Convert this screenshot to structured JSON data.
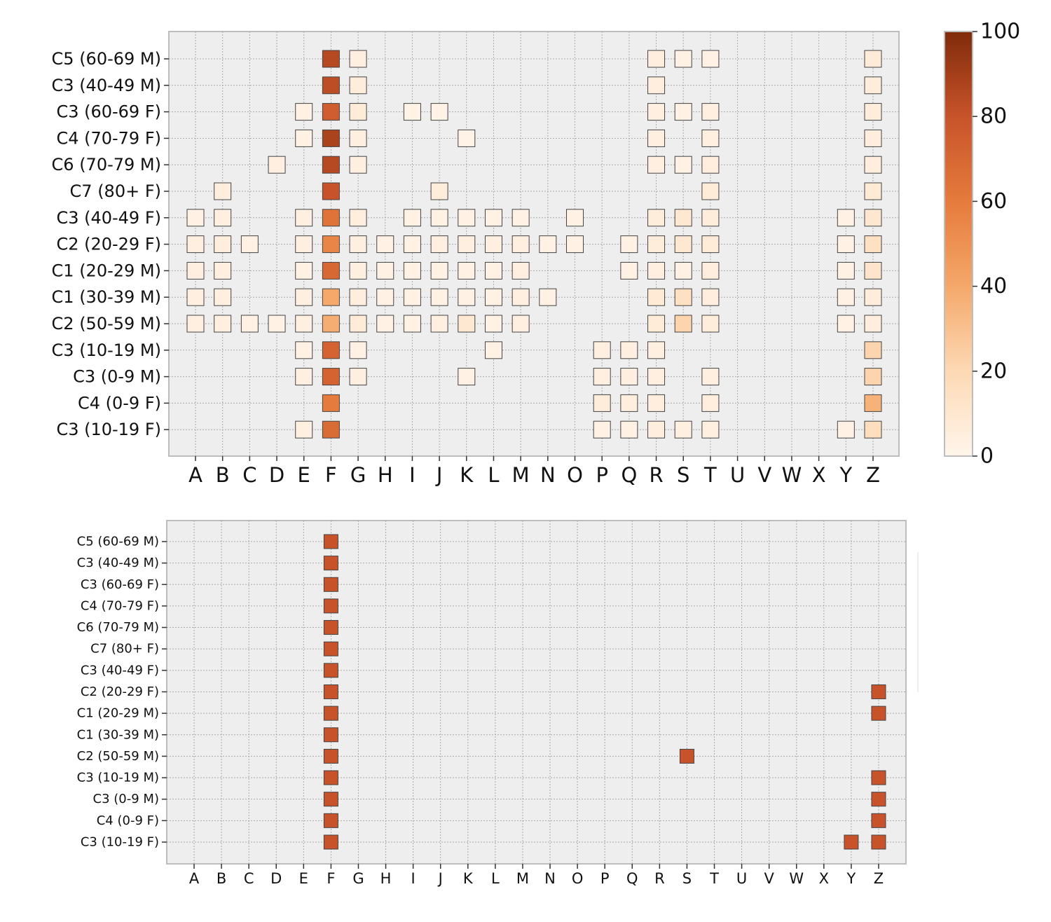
{
  "chart_data": [
    {
      "type": "heatmap",
      "title": "",
      "xlabel": "",
      "ylabel": "",
      "rows": [
        "C5 (60-69 M)",
        "C3 (40-49 M)",
        "C3 (60-69 F)",
        "C4 (70-79 F)",
        "C6 (70-79 M)",
        "C7 (80+ F)",
        "C3 (40-49 F)",
        "C2 (20-29 F)",
        "C1 (20-29 M)",
        "C1 (30-39 M)",
        "C2 (50-59 M)",
        "C3 (10-19 M)",
        "C3 (0-9 M)",
        "C4 (0-9 F)",
        "C3 (10-19 F)"
      ],
      "columns": [
        "A",
        "B",
        "C",
        "D",
        "E",
        "F",
        "G",
        "H",
        "I",
        "J",
        "K",
        "L",
        "M",
        "N",
        "O",
        "P",
        "Q",
        "R",
        "S",
        "T",
        "U",
        "V",
        "W",
        "X",
        "Y",
        "Z"
      ],
      "values": [
        [
          null,
          null,
          null,
          null,
          null,
          85,
          4,
          null,
          null,
          null,
          null,
          null,
          null,
          null,
          null,
          null,
          null,
          5,
          3,
          3,
          null,
          null,
          null,
          null,
          null,
          7
        ],
        [
          null,
          null,
          null,
          null,
          null,
          83,
          6,
          null,
          null,
          null,
          null,
          null,
          null,
          null,
          null,
          null,
          null,
          5,
          null,
          null,
          null,
          null,
          null,
          null,
          null,
          6
        ],
        [
          null,
          null,
          null,
          null,
          3,
          75,
          7,
          null,
          2,
          2,
          null,
          null,
          null,
          null,
          null,
          null,
          null,
          4,
          3,
          4,
          null,
          null,
          null,
          null,
          null,
          6
        ],
        [
          null,
          null,
          null,
          null,
          3,
          88,
          4,
          null,
          null,
          null,
          2,
          null,
          null,
          null,
          null,
          null,
          null,
          4,
          null,
          4,
          null,
          null,
          null,
          null,
          null,
          5
        ],
        [
          null,
          null,
          null,
          4,
          null,
          85,
          4,
          null,
          null,
          null,
          null,
          null,
          null,
          null,
          null,
          null,
          null,
          4,
          3,
          5,
          null,
          null,
          null,
          null,
          null,
          5
        ],
        [
          null,
          5,
          null,
          null,
          null,
          80,
          null,
          null,
          null,
          6,
          null,
          null,
          null,
          null,
          null,
          null,
          null,
          null,
          null,
          7,
          null,
          null,
          null,
          null,
          null,
          8
        ],
        [
          3,
          4,
          null,
          null,
          4,
          64,
          5,
          null,
          3,
          3,
          3,
          3,
          3,
          null,
          3,
          null,
          null,
          6,
          9,
          6,
          null,
          null,
          null,
          null,
          3,
          10
        ],
        [
          4,
          5,
          3,
          null,
          4,
          55,
          4,
          3,
          3,
          4,
          4,
          4,
          4,
          3,
          3,
          null,
          3,
          6,
          9,
          7,
          null,
          null,
          null,
          null,
          3,
          15
        ],
        [
          4,
          4,
          null,
          null,
          3,
          70,
          4,
          3,
          3,
          3,
          3,
          3,
          4,
          null,
          null,
          null,
          3,
          4,
          3,
          5,
          null,
          null,
          null,
          null,
          3,
          12
        ],
        [
          4,
          4,
          null,
          null,
          4,
          40,
          5,
          3,
          3,
          3,
          3,
          3,
          4,
          3,
          null,
          null,
          null,
          8,
          15,
          5,
          null,
          null,
          null,
          null,
          3,
          6
        ],
        [
          4,
          4,
          3,
          3,
          4,
          38,
          7,
          3,
          3,
          4,
          9,
          3,
          4,
          null,
          null,
          null,
          null,
          7,
          22,
          6,
          null,
          null,
          null,
          null,
          3,
          5
        ],
        [
          null,
          null,
          null,
          null,
          3,
          72,
          3,
          null,
          null,
          null,
          null,
          3,
          null,
          null,
          null,
          4,
          4,
          4,
          null,
          null,
          null,
          null,
          null,
          null,
          null,
          22
        ],
        [
          null,
          null,
          null,
          null,
          4,
          72,
          4,
          null,
          null,
          null,
          3,
          null,
          null,
          null,
          null,
          4,
          4,
          4,
          null,
          4,
          null,
          null,
          null,
          null,
          null,
          22
        ],
        [
          null,
          null,
          null,
          null,
          null,
          60,
          null,
          null,
          null,
          null,
          null,
          null,
          null,
          null,
          null,
          6,
          5,
          5,
          null,
          5,
          null,
          null,
          null,
          null,
          null,
          36
        ],
        [
          null,
          null,
          null,
          null,
          4,
          68,
          null,
          null,
          null,
          null,
          null,
          null,
          null,
          null,
          null,
          3,
          3,
          5,
          4,
          4,
          null,
          null,
          null,
          null,
          3,
          16
        ]
      ],
      "colorbar": {
        "min": 0,
        "max": 100,
        "ticks": [
          0,
          20,
          40,
          60,
          80,
          100
        ]
      }
    },
    {
      "type": "heatmap",
      "title": "",
      "xlabel": "",
      "ylabel": "",
      "rows": [
        "C5 (60-69 M)",
        "C3 (40-49 M)",
        "C3 (60-69 F)",
        "C4 (70-79 F)",
        "C6 (70-79 M)",
        "C7 (80+ F)",
        "C3 (40-49 F)",
        "C2 (20-29 F)",
        "C1 (20-29 M)",
        "C1 (30-39 M)",
        "C2 (50-59 M)",
        "C3 (10-19 M)",
        "C3 (0-9 M)",
        "C4 (0-9 F)",
        "C3 (10-19 F)"
      ],
      "columns": [
        "A",
        "B",
        "C",
        "D",
        "E",
        "F",
        "G",
        "H",
        "I",
        "J",
        "K",
        "L",
        "M",
        "N",
        "O",
        "P",
        "Q",
        "R",
        "S",
        "T",
        "U",
        "V",
        "W",
        "X",
        "Y",
        "Z"
      ],
      "markers": [
        {
          "row": "C5 (60-69 M)",
          "col": "F"
        },
        {
          "row": "C3 (40-49 M)",
          "col": "F"
        },
        {
          "row": "C3 (60-69 F)",
          "col": "F"
        },
        {
          "row": "C4 (70-79 F)",
          "col": "F"
        },
        {
          "row": "C6 (70-79 M)",
          "col": "F"
        },
        {
          "row": "C7 (80+ F)",
          "col": "F"
        },
        {
          "row": "C3 (40-49 F)",
          "col": "F"
        },
        {
          "row": "C2 (20-29 F)",
          "col": "F"
        },
        {
          "row": "C2 (20-29 F)",
          "col": "Z"
        },
        {
          "row": "C1 (20-29 M)",
          "col": "F"
        },
        {
          "row": "C1 (20-29 M)",
          "col": "Z"
        },
        {
          "row": "C1 (30-39 M)",
          "col": "F"
        },
        {
          "row": "C2 (50-59 M)",
          "col": "F"
        },
        {
          "row": "C2 (50-59 M)",
          "col": "S"
        },
        {
          "row": "C3 (10-19 M)",
          "col": "F"
        },
        {
          "row": "C3 (10-19 M)",
          "col": "Z"
        },
        {
          "row": "C3 (0-9 M)",
          "col": "F"
        },
        {
          "row": "C3 (0-9 M)",
          "col": "Z"
        },
        {
          "row": "C4 (0-9 F)",
          "col": "F"
        },
        {
          "row": "C4 (0-9 F)",
          "col": "Z"
        },
        {
          "row": "C3 (10-19 F)",
          "col": "F"
        },
        {
          "row": "C3 (10-19 F)",
          "col": "Y"
        },
        {
          "row": "C3 (10-19 F)",
          "col": "Z"
        }
      ],
      "marker_color": "#c8532a"
    }
  ]
}
